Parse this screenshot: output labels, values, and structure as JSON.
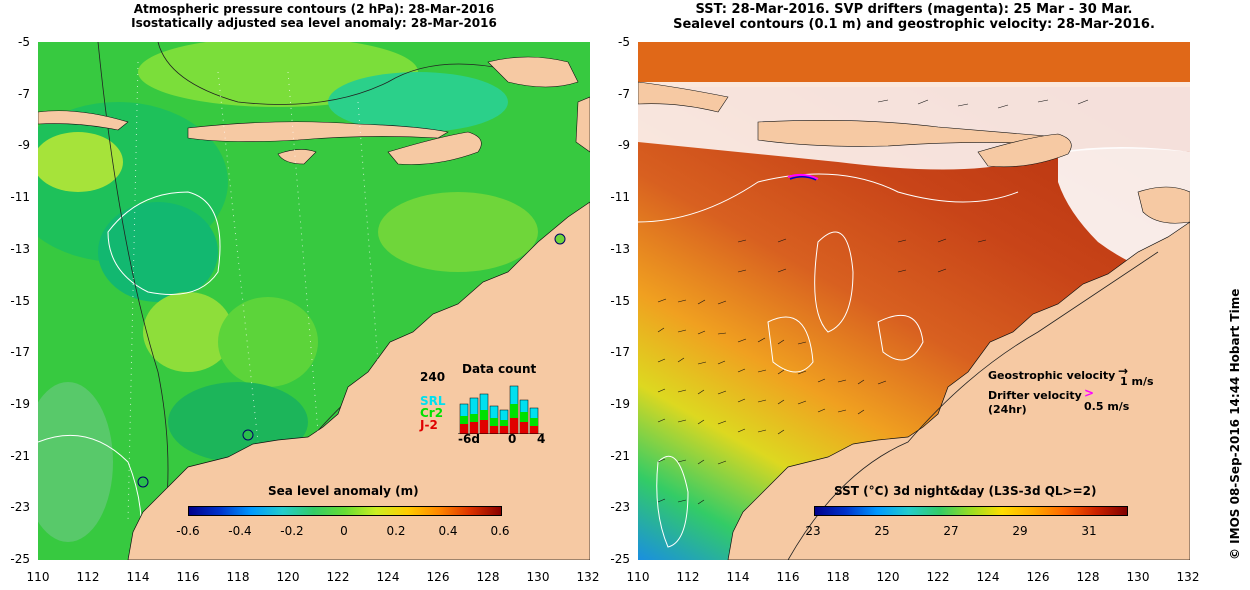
{
  "left_panel": {
    "title_line1": "Atmospheric pressure contours (2 hPa): 28-Mar-2016",
    "title_line2": "Isostatically adjusted sea level anomaly: 28-Mar-2016",
    "colorbar_title": "Sea level anomaly (m)",
    "colorbar_ticks": [
      "-0.6",
      "-0.4",
      "-0.2",
      "0",
      "0.2",
      "0.4",
      "0.6"
    ],
    "data_count": {
      "title": "Data count",
      "ymax_label": "240",
      "x_labels": [
        "-6d",
        "0",
        "4"
      ],
      "series": [
        {
          "name": "SRL",
          "color": "#00e0f0"
        },
        {
          "name": "Cr2",
          "color": "#00e000"
        },
        {
          "name": "J-2",
          "color": "#e00000"
        }
      ]
    }
  },
  "right_panel": {
    "title_line1": "SST: 28-Mar-2016. SVP drifters (magenta): 25 Mar - 30 Mar.",
    "title_line2": "Sealevel contours (0.1 m) and geostrophic velocity: 28-Mar-2016.",
    "colorbar_title": "SST (°C) 3d night&day (L3S-3d QL>=2)",
    "colorbar_ticks": [
      "23",
      "25",
      "27",
      "29",
      "31"
    ],
    "geostrophic_label": "Geostrophic velocity",
    "geostrophic_scale": "1 m/s",
    "drifter_label_line1": "Drifter velocity",
    "drifter_label_line2": "(24hr)",
    "drifter_scale": "0.5 m/s"
  },
  "axes": {
    "y_ticks": [
      "-5",
      "-7",
      "-9",
      "-11",
      "-13",
      "-15",
      "-17",
      "-19",
      "-21",
      "-23",
      "-25"
    ],
    "x_ticks": [
      "110",
      "112",
      "114",
      "116",
      "118",
      "120",
      "122",
      "124",
      "126",
      "128",
      "130",
      "132"
    ]
  },
  "credit": "© IMOS 08-Sep-2016 14:44 Hobart Time",
  "colors": {
    "land": "#f6c9a3",
    "sla_mid": "#33cc33",
    "sst_warm": "#c8401a",
    "sst_cool": "#22aadd",
    "drifter": "#ff00ff"
  }
}
